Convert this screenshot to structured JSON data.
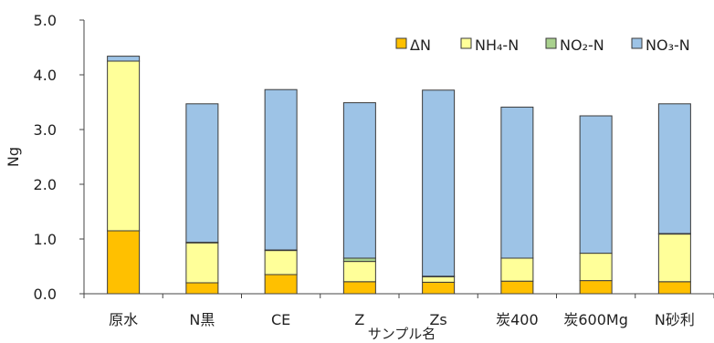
{
  "chart_data": {
    "type": "bar",
    "stacked": true,
    "categories": [
      "原水",
      "N黒",
      "CE",
      "Z",
      "Zs",
      "炭400",
      "炭600Mg",
      "N砂利"
    ],
    "series": [
      {
        "name": "ΔN",
        "color": "#ffc000",
        "values": [
          1.15,
          0.2,
          0.35,
          0.22,
          0.21,
          0.23,
          0.24,
          0.22
        ]
      },
      {
        "name": "NH₄-N",
        "color": "#ffff99",
        "values": [
          3.1,
          0.73,
          0.44,
          0.37,
          0.1,
          0.42,
          0.5,
          0.87
        ]
      },
      {
        "name": "NO₂-N",
        "color": "#a9d18e",
        "values": [
          0.0,
          0.01,
          0.01,
          0.06,
          0.01,
          0.0,
          0.0,
          0.01
        ]
      },
      {
        "name": "NO₃-N",
        "color": "#9dc3e6",
        "values": [
          0.09,
          2.53,
          2.93,
          2.84,
          3.4,
          2.76,
          2.51,
          2.37
        ]
      }
    ],
    "xlabel": "サンプル名",
    "ylabel": "Ng",
    "ylim": [
      0,
      5.0
    ],
    "yticks": [
      "0.0",
      "1.0",
      "2.0",
      "3.0",
      "4.0",
      "5.0"
    ],
    "grid": false,
    "legend_position": "top-right"
  }
}
